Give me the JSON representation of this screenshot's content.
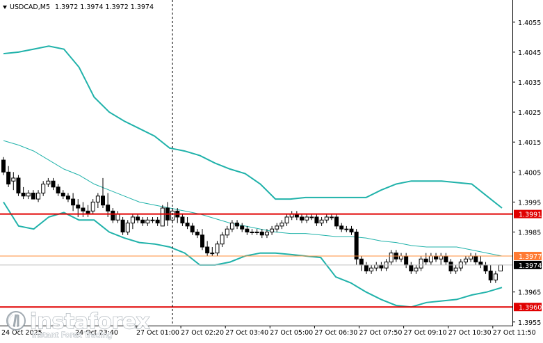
{
  "header": {
    "symbol": "USDCAD,M5",
    "ohlc": "1.3972 1.3974 1.3972 1.3974"
  },
  "watermark": {
    "brand": "instaforex",
    "tagline": "Instant Forex Trading"
  },
  "colors": {
    "background": "#ffffff",
    "candle": "#000000",
    "bands": "#20b2aa",
    "level_line": "#e00000",
    "level_tag": "#e00000",
    "orange_line": "#ff8c3a",
    "orange_tag": "#ff7a33",
    "price_tag": "#000000",
    "cursor_line": "#000000"
  },
  "chart_data": {
    "type": "candlestick",
    "symbol": "USDCAD",
    "timeframe": "M5",
    "y_ticks": [
      "1.4055",
      "1.4045",
      "1.4035",
      "1.4025",
      "1.4015",
      "1.4005",
      "1.3995",
      "1.3985",
      "1.3965",
      "1.3955"
    ],
    "ylim": [
      1.3951,
      1.4061
    ],
    "x_ticks": [
      "27 Oct 01:00",
      "27 Oct 02:20",
      "27 Oct 03:40",
      "27 Oct 05:00",
      "27 Oct 06:30",
      "27 Oct 07:50",
      "27 Oct 09:10",
      "27 Oct 10:30",
      "27 Oct 11:50"
    ],
    "x_first_labels": [
      "24 Oct 2025",
      "24 Oct 23:40"
    ],
    "horizontal_levels": [
      {
        "label": "1.3991",
        "value": 1.3991,
        "style": "red"
      },
      {
        "label": "1.3977",
        "value": 1.3977,
        "style": "orange"
      },
      {
        "label": "1.3960",
        "value": 1.396,
        "style": "red"
      }
    ],
    "current_price": {
      "label": "1.3974",
      "value": 1.3974
    },
    "cursor_index": 34,
    "bollinger": {
      "upper": [
        1.40445,
        1.4045,
        1.4046,
        1.4047,
        1.4046,
        1.404,
        1.403,
        1.4025,
        1.4022,
        1.40195,
        1.4017,
        1.4013,
        1.4012,
        1.40105,
        1.4008,
        1.4006,
        1.40045,
        1.4001,
        1.3996,
        1.3996,
        1.39965,
        1.39965,
        1.39965,
        1.39965,
        1.39965,
        1.3999,
        1.4001,
        1.4002,
        1.4002,
        1.4002,
        1.40015,
        1.4001,
        1.3997,
        1.3993
      ],
      "middle": [
        1.40155,
        1.4014,
        1.4012,
        1.4009,
        1.4006,
        1.4004,
        1.4001,
        1.3999,
        1.3997,
        1.3995,
        1.3994,
        1.3993,
        1.3992,
        1.3991,
        1.39895,
        1.3988,
        1.3987,
        1.3986,
        1.3985,
        1.39845,
        1.39845,
        1.3984,
        1.39835,
        1.39835,
        1.3983,
        1.3982,
        1.39815,
        1.39805,
        1.398,
        1.398,
        1.398,
        1.3979,
        1.3978,
        1.3977
      ],
      "lower": [
        1.3995,
        1.3987,
        1.3986,
        1.399,
        1.39915,
        1.3989,
        1.3989,
        1.3985,
        1.3983,
        1.39815,
        1.3981,
        1.398,
        1.3978,
        1.3974,
        1.3974,
        1.3975,
        1.3977,
        1.3978,
        1.3978,
        1.39775,
        1.3977,
        1.39765,
        1.397,
        1.3968,
        1.3965,
        1.39625,
        1.39605,
        1.396,
        1.39615,
        1.3962,
        1.39625,
        1.3964,
        1.3965,
        1.39665
      ]
    },
    "bollinger_x_samples": 34,
    "candles": [
      [
        1.4009,
        1.401,
        1.4004,
        1.4005
      ],
      [
        1.4005,
        1.4007,
        1.4,
        1.4001
      ],
      [
        1.4002,
        1.4005,
        1.3999,
        1.4003
      ],
      [
        1.4003,
        1.4004,
        1.3997,
        1.3998
      ],
      [
        1.3998,
        1.4,
        1.3996,
        1.3997
      ],
      [
        1.3997,
        1.3999,
        1.3996,
        1.3998
      ],
      [
        1.3998,
        1.3999,
        1.3996,
        1.3996
      ],
      [
        1.3996,
        1.3999,
        1.3995,
        1.3998
      ],
      [
        1.3998,
        1.4002,
        1.3997,
        1.4001
      ],
      [
        1.4001,
        1.4003,
        1.4,
        1.4002
      ],
      [
        1.4002,
        1.4003,
        1.3999,
        1.4
      ],
      [
        1.4,
        1.4001,
        1.3997,
        1.3998
      ],
      [
        1.3998,
        1.3999,
        1.3996,
        1.3997
      ],
      [
        1.3997,
        1.3998,
        1.3995,
        1.3996
      ],
      [
        1.3996,
        1.3998,
        1.3992,
        1.3994
      ],
      [
        1.3994,
        1.3996,
        1.399,
        1.3993
      ],
      [
        1.3993,
        1.3995,
        1.399,
        1.3992
      ],
      [
        1.3992,
        1.3994,
        1.399,
        1.3991
      ],
      [
        1.3992,
        1.3996,
        1.3991,
        1.3995
      ],
      [
        1.3995,
        1.3998,
        1.3993,
        1.3997
      ],
      [
        1.3997,
        1.4003,
        1.3993,
        1.3994
      ],
      [
        1.3994,
        1.3998,
        1.399,
        1.3992
      ],
      [
        1.3992,
        1.3993,
        1.3988,
        1.3989
      ],
      [
        1.3989,
        1.3992,
        1.3988,
        1.3991
      ],
      [
        1.3989,
        1.399,
        1.3984,
        1.3985
      ],
      [
        1.3985,
        1.3989,
        1.3984,
        1.3988
      ],
      [
        1.3988,
        1.3991,
        1.3986,
        1.399
      ],
      [
        1.399,
        1.3991,
        1.3988,
        1.3989
      ],
      [
        1.3989,
        1.399,
        1.3987,
        1.3988
      ],
      [
        1.3988,
        1.399,
        1.3987,
        1.3989
      ],
      [
        1.3989,
        1.399,
        1.3988,
        1.3989
      ],
      [
        1.3989,
        1.399,
        1.3987,
        1.3988
      ],
      [
        1.3987,
        1.3994,
        1.3987,
        1.3993
      ],
      [
        1.3993,
        1.3995,
        1.3987,
        1.3989
      ],
      [
        1.3989,
        1.3993,
        1.3988,
        1.3992
      ],
      [
        1.3992,
        1.3993,
        1.3988,
        1.399
      ],
      [
        1.399,
        1.3991,
        1.3987,
        1.3988
      ],
      [
        1.3988,
        1.399,
        1.3986,
        1.3987
      ],
      [
        1.3987,
        1.3988,
        1.3984,
        1.3985
      ],
      [
        1.3985,
        1.3986,
        1.3983,
        1.3984
      ],
      [
        1.3984,
        1.3986,
        1.3979,
        1.398
      ],
      [
        1.398,
        1.3982,
        1.3977,
        1.3978
      ],
      [
        1.3978,
        1.398,
        1.3977,
        1.3978
      ],
      [
        1.3978,
        1.3982,
        1.3977,
        1.3981
      ],
      [
        1.3981,
        1.3985,
        1.398,
        1.3984
      ],
      [
        1.3984,
        1.3987,
        1.3983,
        1.3986
      ],
      [
        1.3986,
        1.3989,
        1.3985,
        1.3988
      ],
      [
        1.3988,
        1.3989,
        1.3986,
        1.3987
      ],
      [
        1.3987,
        1.3988,
        1.3985,
        1.3986
      ],
      [
        1.3986,
        1.3987,
        1.3984,
        1.3985
      ],
      [
        1.3985,
        1.3986,
        1.3984,
        1.3985
      ],
      [
        1.3985,
        1.3986,
        1.3984,
        1.3985
      ],
      [
        1.3985,
        1.3986,
        1.3983,
        1.3984
      ],
      [
        1.3984,
        1.3986,
        1.3983,
        1.3985
      ],
      [
        1.3985,
        1.3987,
        1.3984,
        1.3986
      ],
      [
        1.3986,
        1.3988,
        1.3985,
        1.3987
      ],
      [
        1.3987,
        1.3989,
        1.3986,
        1.3988
      ],
      [
        1.3988,
        1.3991,
        1.3987,
        1.399
      ],
      [
        1.399,
        1.3992,
        1.3989,
        1.3991
      ],
      [
        1.3991,
        1.3992,
        1.3989,
        1.399
      ],
      [
        1.399,
        1.3991,
        1.3988,
        1.3989
      ],
      [
        1.3989,
        1.3991,
        1.3988,
        1.399
      ],
      [
        1.399,
        1.3991,
        1.3989,
        1.399
      ],
      [
        1.399,
        1.3991,
        1.3987,
        1.3988
      ],
      [
        1.3988,
        1.399,
        1.3987,
        1.3989
      ],
      [
        1.3989,
        1.3991,
        1.3988,
        1.399
      ],
      [
        1.399,
        1.3991,
        1.3989,
        1.399
      ],
      [
        1.399,
        1.3991,
        1.3986,
        1.3987
      ],
      [
        1.3987,
        1.3988,
        1.3985,
        1.3986
      ],
      [
        1.3986,
        1.3987,
        1.3985,
        1.3986
      ],
      [
        1.3986,
        1.3987,
        1.3984,
        1.3985
      ],
      [
        1.3985,
        1.3986,
        1.3974,
        1.3976
      ],
      [
        1.3976,
        1.3977,
        1.3972,
        1.3974
      ],
      [
        1.3974,
        1.3975,
        1.3971,
        1.3972
      ],
      [
        1.3972,
        1.3974,
        1.3971,
        1.3973
      ],
      [
        1.3973,
        1.3975,
        1.3972,
        1.3974
      ],
      [
        1.3974,
        1.3975,
        1.3972,
        1.3973
      ],
      [
        1.3973,
        1.3976,
        1.3972,
        1.3975
      ],
      [
        1.3975,
        1.3979,
        1.3974,
        1.3978
      ],
      [
        1.3978,
        1.3979,
        1.3975,
        1.3976
      ],
      [
        1.3976,
        1.3978,
        1.3975,
        1.3977
      ],
      [
        1.3977,
        1.3978,
        1.3973,
        1.3974
      ],
      [
        1.3974,
        1.3975,
        1.3971,
        1.3972
      ],
      [
        1.3972,
        1.3974,
        1.3971,
        1.3973
      ],
      [
        1.3973,
        1.3977,
        1.3972,
        1.3976
      ],
      [
        1.3976,
        1.3978,
        1.3974,
        1.3975
      ],
      [
        1.3975,
        1.3978,
        1.3974,
        1.3977
      ],
      [
        1.3977,
        1.3978,
        1.3975,
        1.3976
      ],
      [
        1.3976,
        1.3978,
        1.3974,
        1.3977
      ],
      [
        1.3977,
        1.3978,
        1.3974,
        1.3975
      ],
      [
        1.3975,
        1.3976,
        1.3971,
        1.3972
      ],
      [
        1.3972,
        1.3974,
        1.3971,
        1.3973
      ],
      [
        1.3973,
        1.3976,
        1.3972,
        1.3975
      ],
      [
        1.3975,
        1.3977,
        1.3974,
        1.3976
      ],
      [
        1.3976,
        1.3978,
        1.3975,
        1.3977
      ],
      [
        1.3977,
        1.3978,
        1.3974,
        1.3975
      ],
      [
        1.3975,
        1.3977,
        1.3973,
        1.3974
      ],
      [
        1.3974,
        1.3975,
        1.3971,
        1.3972
      ],
      [
        1.3972,
        1.3974,
        1.3968,
        1.3969
      ],
      [
        1.3969,
        1.3972,
        1.3968,
        1.3971
      ],
      [
        1.3972,
        1.3974,
        1.3972,
        1.3974
      ]
    ]
  }
}
